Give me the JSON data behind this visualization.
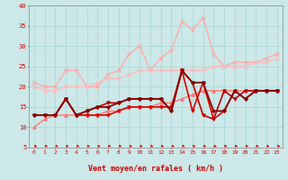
{
  "x": [
    0,
    1,
    2,
    3,
    4,
    5,
    6,
    7,
    8,
    9,
    10,
    11,
    12,
    13,
    14,
    15,
    16,
    17,
    18,
    19,
    20,
    21,
    22,
    23
  ],
  "series": [
    {
      "color": "#ffaaaa",
      "lw": 1.0,
      "marker": "x",
      "ms": 3,
      "mew": 0.8,
      "values": [
        21,
        20,
        20,
        24,
        24,
        20,
        20,
        23,
        24,
        28,
        30,
        24,
        27,
        29,
        36,
        34,
        37,
        28,
        25,
        26,
        26,
        26,
        27,
        28
      ]
    },
    {
      "color": "#ffbbbb",
      "lw": 1.0,
      "marker": "x",
      "ms": 3,
      "mew": 0.8,
      "values": [
        20,
        19,
        19,
        20,
        20,
        20,
        21,
        22,
        22,
        23,
        24,
        24,
        24,
        24,
        24,
        24,
        24,
        25,
        25,
        25,
        25,
        26,
        26,
        27
      ]
    },
    {
      "color": "#ff7777",
      "lw": 1.0,
      "marker": "^",
      "ms": 2.5,
      "mew": 0.7,
      "values": [
        10,
        12,
        13,
        13,
        13,
        13,
        13,
        14,
        14,
        15,
        15,
        15,
        16,
        16,
        17,
        18,
        19,
        19,
        19,
        19,
        19,
        19,
        19,
        19
      ]
    },
    {
      "color": "#dd0000",
      "lw": 1.2,
      "marker": "v",
      "ms": 2.5,
      "mew": 0.7,
      "values": [
        13,
        13,
        13,
        17,
        13,
        13,
        13,
        13,
        14,
        15,
        15,
        15,
        15,
        15,
        24,
        14,
        21,
        12,
        14,
        19,
        17,
        19,
        19,
        19
      ]
    },
    {
      "color": "#bb0000",
      "lw": 1.2,
      "marker": "v",
      "ms": 2.5,
      "mew": 0.7,
      "values": [
        13,
        13,
        13,
        17,
        13,
        14,
        15,
        16,
        16,
        17,
        17,
        17,
        17,
        14,
        24,
        21,
        13,
        12,
        19,
        17,
        19,
        19,
        19,
        19
      ]
    },
    {
      "color": "#880000",
      "lw": 1.3,
      "marker": "D",
      "ms": 2.0,
      "mew": 0.6,
      "values": [
        13,
        13,
        13,
        17,
        13,
        14,
        15,
        15,
        16,
        17,
        17,
        17,
        17,
        14,
        24,
        21,
        21,
        14,
        14,
        19,
        17,
        19,
        19,
        19
      ]
    }
  ],
  "xlabel": "Vent moyen/en rafales ( km/h )",
  "ylim": [
    5,
    40
  ],
  "yticks": [
    5,
    10,
    15,
    20,
    25,
    30,
    35,
    40
  ],
  "xlim": [
    -0.5,
    23.5
  ],
  "bg_color": "#cce8e8",
  "grid_color": "#aad4d4",
  "text_color": "#cc0000",
  "arrow_color": "#cc0000",
  "spine_color": "#888888"
}
